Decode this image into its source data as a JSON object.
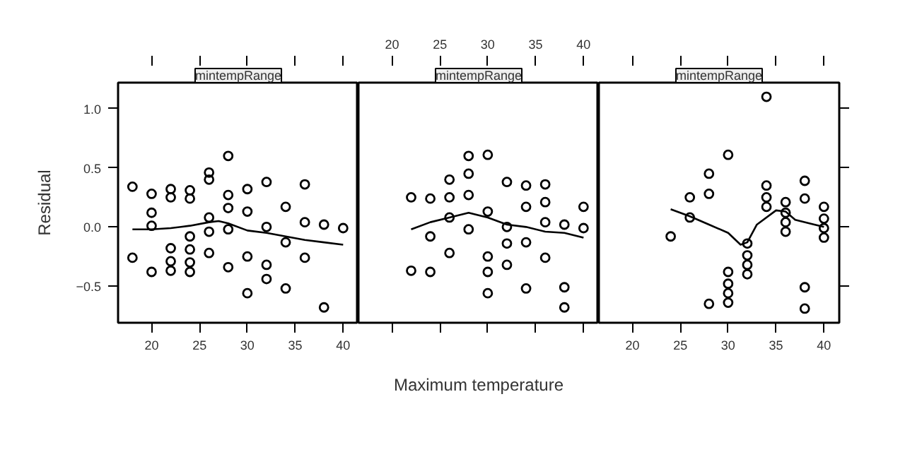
{
  "chart_data": [
    {
      "type": "scatter",
      "title": "mintempRange",
      "ylabel": "Residual",
      "xlim": [
        16.5,
        41.6
      ],
      "ylim": [
        -0.81,
        1.22
      ],
      "xticks": [
        20,
        25,
        30,
        35,
        40
      ],
      "yticks": [
        {
          "value": -0.5,
          "label": "−0.5"
        },
        {
          "value": 0,
          "label": "0.0"
        },
        {
          "value": 0.5,
          "label": "0.5"
        },
        {
          "value": 1,
          "label": "1.0"
        }
      ],
      "series": [
        {
          "marker": "circle",
          "color": "#000000",
          "x": [
            18,
            18,
            20,
            20,
            20,
            20,
            22,
            22,
            22,
            22,
            22,
            24,
            24,
            24,
            24,
            24,
            24,
            26,
            26,
            26,
            26,
            26,
            28,
            28,
            28,
            28,
            28,
            30,
            30,
            30,
            30,
            32,
            32,
            32,
            32,
            34,
            34,
            34,
            36,
            36,
            36,
            38,
            38,
            40
          ],
          "values": [
            0.34,
            -0.26,
            0.28,
            0.12,
            0.01,
            -0.38,
            0.32,
            0.25,
            -0.18,
            -0.29,
            -0.37,
            0.31,
            0.24,
            -0.08,
            -0.19,
            -0.3,
            -0.38,
            0.46,
            0.4,
            0.08,
            -0.04,
            -0.22,
            0.6,
            0.27,
            0.16,
            -0.02,
            -0.34,
            0.32,
            0.13,
            -0.25,
            -0.56,
            0.38,
            0.0,
            -0.32,
            -0.44,
            0.17,
            -0.13,
            -0.52,
            0.36,
            0.04,
            -0.26,
            0.02,
            -0.68,
            -0.01
          ]
        },
        {
          "type": "line",
          "color": "#000000",
          "x": [
            18,
            20,
            22,
            24,
            26,
            27,
            28,
            30,
            32,
            34,
            36,
            38,
            40
          ],
          "values": [
            -0.02,
            -0.02,
            -0.01,
            0.01,
            0.04,
            0.05,
            0.03,
            -0.03,
            -0.05,
            -0.08,
            -0.11,
            -0.13,
            -0.15
          ]
        }
      ]
    },
    {
      "type": "scatter",
      "title": "mintempRange",
      "xlabel": "Maximum temperature",
      "tick_labels": "x",
      "xlim": [
        16.5,
        41.6
      ],
      "ylim": [
        -0.81,
        1.22
      ],
      "xticks": [
        20,
        25,
        30,
        35,
        40
      ],
      "series": [
        {
          "marker": "circle",
          "color": "#000000",
          "x": [
            22,
            22,
            24,
            24,
            24,
            26,
            26,
            26,
            26,
            28,
            28,
            28,
            28,
            30,
            30,
            30,
            30,
            30,
            32,
            32,
            32,
            32,
            34,
            34,
            34,
            34,
            36,
            36,
            36,
            36,
            38,
            38,
            38,
            40,
            40
          ],
          "values": [
            0.25,
            -0.37,
            0.24,
            -0.08,
            -0.38,
            0.4,
            0.25,
            0.08,
            -0.22,
            0.6,
            0.45,
            0.27,
            -0.02,
            0.61,
            0.13,
            -0.25,
            -0.38,
            -0.56,
            0.38,
            0.0,
            -0.14,
            -0.32,
            0.35,
            0.17,
            -0.13,
            -0.52,
            0.36,
            0.21,
            0.04,
            -0.26,
            0.02,
            -0.51,
            -0.68,
            0.17,
            -0.01
          ]
        },
        {
          "type": "line",
          "color": "#000000",
          "x": [
            22,
            24,
            26,
            28,
            30,
            32,
            34,
            36,
            38,
            40
          ],
          "values": [
            -0.02,
            0.04,
            0.08,
            0.12,
            0.08,
            0.02,
            0.0,
            -0.04,
            -0.05,
            -0.09
          ]
        }
      ]
    },
    {
      "type": "scatter",
      "title": "mintempRange",
      "tick_labels": "x",
      "xlim": [
        16.5,
        41.6
      ],
      "ylim": [
        -0.81,
        1.22
      ],
      "xticks": [
        20,
        25,
        30,
        35,
        40
      ],
      "yticks": [
        -0.5,
        0,
        0.5,
        1
      ],
      "series": [
        {
          "marker": "circle",
          "color": "#000000",
          "x": [
            24,
            26,
            26,
            28,
            28,
            28,
            30,
            30,
            30,
            30,
            30,
            32,
            32,
            32,
            32,
            34,
            34,
            34,
            34,
            36,
            36,
            36,
            36,
            38,
            38,
            38,
            38,
            40,
            40,
            40,
            40
          ],
          "values": [
            -0.08,
            0.25,
            0.08,
            0.45,
            0.28,
            -0.65,
            0.61,
            -0.38,
            -0.48,
            -0.56,
            -0.64,
            -0.14,
            -0.24,
            -0.32,
            -0.4,
            1.1,
            0.35,
            0.25,
            0.17,
            0.21,
            0.12,
            0.04,
            -0.04,
            0.39,
            0.24,
            -0.51,
            -0.69,
            0.17,
            0.07,
            -0.01,
            -0.09
          ]
        },
        {
          "type": "line",
          "color": "#000000",
          "x": [
            24,
            26,
            28,
            30,
            31.3,
            32,
            33,
            35,
            36,
            37,
            39,
            40
          ],
          "values": [
            0.15,
            0.09,
            0.02,
            -0.05,
            -0.15,
            -0.13,
            0.02,
            0.14,
            0.13,
            0.06,
            0.02,
            0.0
          ]
        }
      ]
    }
  ]
}
